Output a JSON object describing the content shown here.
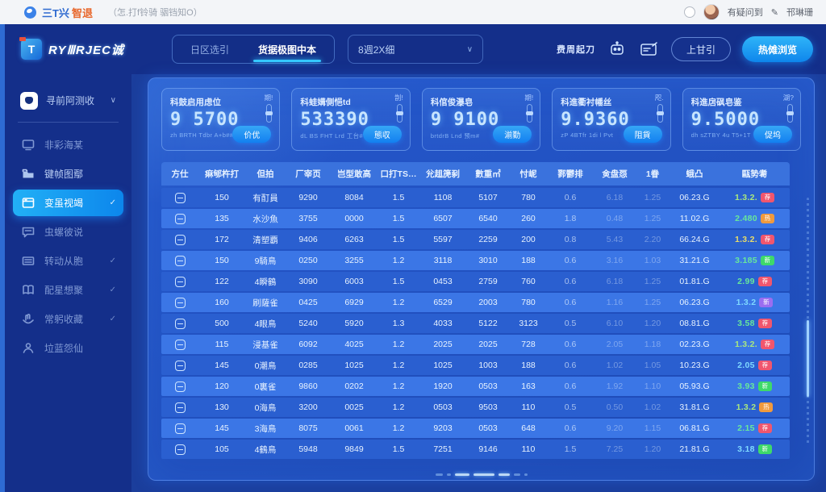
{
  "colors": {
    "accent_cyan": "#35c8ff",
    "primary_blue": "#0e86ec",
    "panel_blue": "#2457c9",
    "sidebar_navy": "#142f8a",
    "badge_red": "#f0566e",
    "badge_green": "#3ed96a",
    "badge_orange": "#f09a3e",
    "badge_violet": "#9a6df0"
  },
  "browser_bar": {
    "logo_text_blue": "三T兴",
    "logo_text_orange": "智退",
    "subtitle": "（怎.打f铃骑 骃铛知O）",
    "user_name": "有疑问到",
    "edit_icon": "pencil-icon",
    "edit_label": "邗琳珊"
  },
  "brand": {
    "icon_letter": "T",
    "name": "RYⅢRJEC诚"
  },
  "header": {
    "tabs": [
      {
        "label": "日区选引",
        "active": false
      },
      {
        "label": "货据极图中本",
        "active": true
      }
    ],
    "select_value": "8週2X细",
    "select_chevron": "∨",
    "usage_label": "费周起刀",
    "outline_button": "上甘引",
    "primary_button": "热傩浏览"
  },
  "sidebar": {
    "items": [
      {
        "icon": "app-icon",
        "label": "寻前阿测收",
        "trail": "∨",
        "boxed": true,
        "divider_after": true
      },
      {
        "icon": "monitor-icon",
        "label": "非彩海某",
        "dim": true
      },
      {
        "icon": "folder-icon",
        "label": "键帧图鄢"
      },
      {
        "icon": "window-icon",
        "label": "变虽视竭",
        "trail": "✓",
        "active": true
      },
      {
        "icon": "chat-icon",
        "label": "虫螺彼说",
        "dim": true
      },
      {
        "icon": "list-icon",
        "label": "转动从胞",
        "trail": "✓",
        "dim": true
      },
      {
        "icon": "book-icon",
        "label": "配星想聚",
        "trail": "✓",
        "dim": true
      },
      {
        "icon": "hand-icon",
        "label": "常躬收藏",
        "trail": "✓",
        "dim": true
      },
      {
        "icon": "person-icon",
        "label": "垃蓝怨仙",
        "dim": true
      }
    ]
  },
  "cards": [
    {
      "title": "科鼓启用虑位",
      "value": "9 5700",
      "sub": "zh BRTH Tdbr A+b##",
      "action": "价优",
      "tag": "期!"
    },
    {
      "title": "科蛙媾側悒td",
      "value": "533390",
      "sub": "dL BS FHT Lrd 工台#",
      "action": "態収",
      "tag": "剒!"
    },
    {
      "title": "科倌俊瀑皂",
      "value": "9 9100",
      "sub": "brtdrB Lnd 预m#",
      "action": "湔勤",
      "tag": "期!"
    },
    {
      "title": "科進衢衬幡丝",
      "value": "9.9360",
      "sub": "zP 4BTfr 1di l Pvt",
      "action": "阻貨",
      "tag": "咫."
    },
    {
      "title": "科進扂砜皂鉴",
      "value": "9.5000",
      "sub": "dh sZTBY 4u T5+1T",
      "action": "促坞",
      "tag": "湖?"
    }
  ],
  "table": {
    "columns": [
      "方仕",
      "痳郇杵打",
      "但拍",
      "厂宰页",
      "岂型敢高",
      "口打TS…",
      "兊趄箎剢",
      "數重㎡",
      "忖㞾",
      "鄝鬱排",
      "㑒盘㤪",
      "1眷",
      "蛾凸",
      "甌㔟耈"
    ],
    "rows": [
      {
        "cells": [
          "150",
          "有酊員",
          "9290",
          "8084",
          "1.5",
          "1108",
          "5107",
          "780",
          "0.6",
          "6.18",
          "1.25",
          "06.23.G"
        ],
        "final": {
          "text": "1.3.2.",
          "color": "#a8e87e",
          "badge_label": "荐",
          "badge_bg": "#f0566e"
        }
      },
      {
        "cells": [
          "135",
          "水沙魚",
          "3755",
          "0000",
          "1.5",
          "6507",
          "6540",
          "260",
          "1.8",
          "0.48",
          "1.25",
          "11.02.G"
        ],
        "final": {
          "text": "2.480",
          "color": "#67e89b",
          "badge_label": "热",
          "badge_bg": "#f09a3e"
        }
      },
      {
        "cells": [
          "172",
          "清塑覇",
          "9406",
          "6263",
          "1.5",
          "5597",
          "2259",
          "200",
          "0.8",
          "5.43",
          "2.20",
          "66.24.G"
        ],
        "final": {
          "text": "1.3.2.",
          "color": "#e8dc6a",
          "badge_label": "荐",
          "badge_bg": "#f0566e"
        }
      },
      {
        "cells": [
          "150",
          "9騎鳥",
          "0250",
          "3255",
          "1.2",
          "3118",
          "3010",
          "188",
          "0.6",
          "3.16",
          "1.03",
          "31.21.G"
        ],
        "final": {
          "text": "3.185",
          "color": "#67e89b",
          "badge_label": "新",
          "badge_bg": "#3ed96a"
        }
      },
      {
        "cells": [
          "122",
          "4瞬鶴",
          "3090",
          "6003",
          "1.5",
          "0453",
          "2759",
          "760",
          "0.6",
          "6.18",
          "1.25",
          "01.81.G"
        ],
        "final": {
          "text": "2.99",
          "color": "#67e89b",
          "badge_label": "荐",
          "badge_bg": "#f0566e"
        }
      },
      {
        "cells": [
          "160",
          "刷薩雀",
          "0425",
          "6929",
          "1.2",
          "6529",
          "2003",
          "780",
          "0.6",
          "1.16",
          "1.25",
          "06.23.G"
        ],
        "final": {
          "text": "1.3.2",
          "color": "#7fd9ff",
          "badge_label": "新",
          "badge_bg": "#9a6df0"
        }
      },
      {
        "cells": [
          "500",
          "4眼鳥",
          "5240",
          "5920",
          "1.3",
          "4033",
          "5122",
          "3123",
          "0.5",
          "6.10",
          "1.20",
          "08.81.G"
        ],
        "final": {
          "text": "3.58",
          "color": "#67e89b",
          "badge_label": "荐",
          "badge_bg": "#f0566e"
        }
      },
      {
        "cells": [
          "115",
          "浸基雀",
          "6092",
          "4025",
          "1.2",
          "2025",
          "2025",
          "728",
          "0.6",
          "2.05",
          "1.18",
          "02.23.G"
        ],
        "final": {
          "text": "1.3.2.",
          "color": "#a8e87e",
          "badge_label": "荐",
          "badge_bg": "#f0566e"
        }
      },
      {
        "cells": [
          "145",
          "0潮鳥",
          "0285",
          "1025",
          "1.2",
          "1025",
          "1003",
          "188",
          "0.6",
          "1.02",
          "1.05",
          "10.23.G"
        ],
        "final": {
          "text": "2.05",
          "color": "#7fd9ff",
          "badge_label": "荐",
          "badge_bg": "#f0566e"
        }
      },
      {
        "cells": [
          "120",
          "0裏雀",
          "9860",
          "0202",
          "1.2",
          "1920",
          "0503",
          "163",
          "0.6",
          "1.92",
          "1.10",
          "05.93.G"
        ],
        "final": {
          "text": "3.93",
          "color": "#67e89b",
          "badge_label": "新",
          "badge_bg": "#3ed96a"
        }
      },
      {
        "cells": [
          "130",
          "0海鳥",
          "3200",
          "0025",
          "1.2",
          "0503",
          "9503",
          "110",
          "0.5",
          "0.50",
          "1.02",
          "31.81.G"
        ],
        "final": {
          "text": "1.3.2",
          "color": "#a8e87e",
          "badge_label": "热",
          "badge_bg": "#f09a3e"
        }
      },
      {
        "cells": [
          "145",
          "3海鳥",
          "8075",
          "0061",
          "1.2",
          "9203",
          "0503",
          "648",
          "0.6",
          "9.20",
          "1.15",
          "06.81.G"
        ],
        "final": {
          "text": "2.15",
          "color": "#67e89b",
          "badge_label": "荐",
          "badge_bg": "#f0566e"
        }
      },
      {
        "cells": [
          "105",
          "4鶴鳥",
          "5948",
          "9849",
          "1.5",
          "7251",
          "9146",
          "110",
          "1.5",
          "7.25",
          "1.20",
          "21.81.G"
        ],
        "final": {
          "text": "3.18",
          "color": "#7fd9ff",
          "badge_label": "新",
          "badge_bg": "#3ed96a"
        }
      }
    ]
  }
}
